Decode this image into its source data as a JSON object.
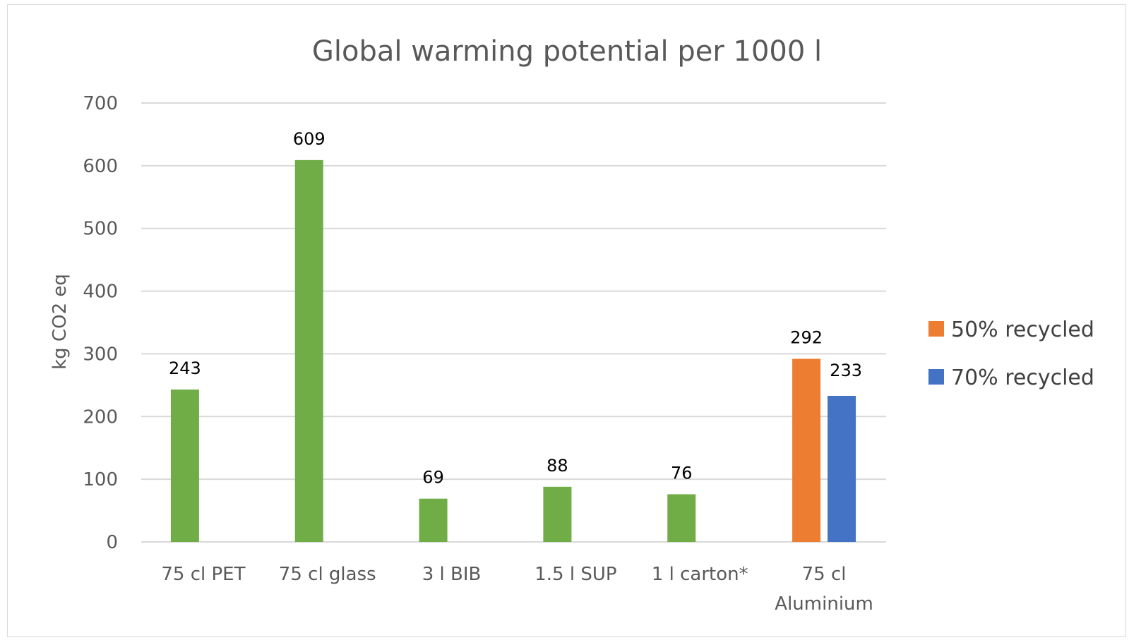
{
  "chart_data": {
    "type": "bar",
    "title": "Global warming potential per 1000 l",
    "ylabel": "kg CO2 eq",
    "xlabel": "",
    "ylim": [
      0,
      700
    ],
    "yticks": [
      0,
      100,
      200,
      300,
      400,
      500,
      600,
      700
    ],
    "grid": true,
    "legend_position": "right",
    "categories": [
      [
        "75 cl PET"
      ],
      [
        "75 cl glass"
      ],
      [
        "3 l BIB"
      ],
      [
        "1.5 l SUP"
      ],
      [
        "1 l carton*"
      ],
      [
        "75 cl",
        "Aluminium"
      ]
    ],
    "bars": [
      {
        "category_index": 0,
        "value": 243,
        "label": "243",
        "color": "#70ad47"
      },
      {
        "category_index": 1,
        "value": 609,
        "label": "609",
        "color": "#70ad47"
      },
      {
        "category_index": 2,
        "value": 69,
        "label": "69",
        "color": "#70ad47"
      },
      {
        "category_index": 3,
        "value": 88,
        "label": "88",
        "color": "#70ad47"
      },
      {
        "category_index": 4,
        "value": 76,
        "label": "76",
        "color": "#70ad47"
      },
      {
        "category_index": 5,
        "value": 292,
        "label": "292",
        "color": "#ed7d31",
        "series": "50% recycled"
      },
      {
        "category_index": 5,
        "value": 233,
        "label": "233",
        "color": "#4472c4",
        "series": "70% recycled"
      }
    ],
    "legend": [
      {
        "name": "50% recycled",
        "color": "#ed7d31"
      },
      {
        "name": "70% recycled",
        "color": "#4472c4"
      }
    ]
  }
}
